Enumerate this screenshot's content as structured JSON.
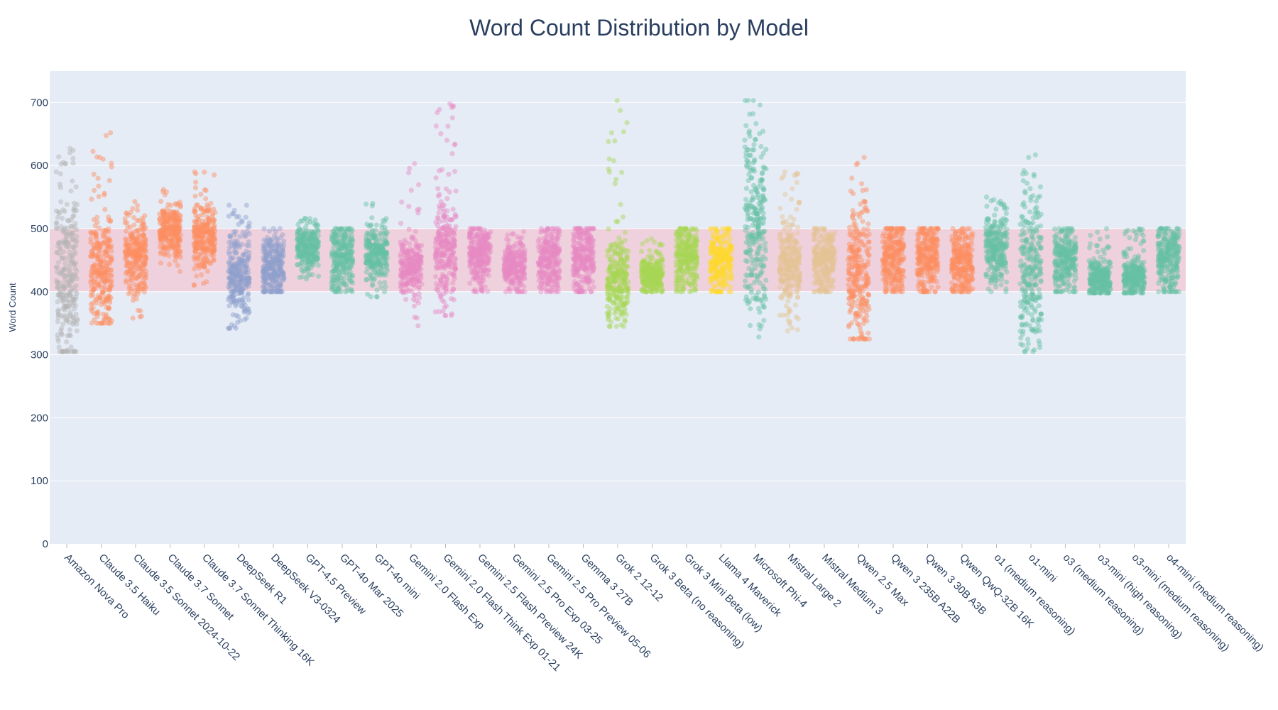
{
  "chart_data": {
    "type": "scatter",
    "title": "Word Count Distribution by Model",
    "xlabel": "",
    "ylabel": "Word Count",
    "ylim": [
      0,
      750
    ],
    "yticks": [
      0,
      100,
      200,
      300,
      400,
      500,
      600,
      700
    ],
    "grid": true,
    "highlight_band": {
      "from": 400,
      "to": 500,
      "color": "#f2c6d2"
    },
    "background_color": "#e5ecf6",
    "categories": [
      "Amazon Nova Pro",
      "Claude 3.5 Haiku",
      "Claude 3.5 Sonnet 2024-10-22",
      "Claude 3.7 Sonnet",
      "Claude 3.7 Sonnet Thinking 16K",
      "DeepSeek R1",
      "DeepSeek V3-0324",
      "GPT-4.5 Preview",
      "GPT-4o Mar 2025",
      "GPT-4o mini",
      "Gemini 2.0 Flash Exp",
      "Gemini 2.0 Flash Think Exp 01-21",
      "Gemini 2.5 Flash Preview 24K",
      "Gemini 2.5 Pro Exp 03-25",
      "Gemini 2.5 Pro Preview 05-06",
      "Gemma 3 27B",
      "Grok 2 12-12",
      "Grok 3 Beta (no reasoning)",
      "Grok 3 Mini Beta (low)",
      "Llama 4 Maverick",
      "Microsoft Phi-4",
      "Mistral Large 2",
      "Mistral Medium 3",
      "Qwen 2.5 Max",
      "Qwen 3 235B A22B",
      "Qwen 3 30B A3B",
      "Qwen QwQ-32B 16K",
      "o1 (medium reasoning)",
      "o1-mini",
      "o3 (medium reasoning)",
      "o3-mini (high reasoning)",
      "o3-mini (medium reasoning)",
      "o4-mini (medium reasoning)"
    ],
    "series": [
      {
        "color": "#b3b3b3",
        "min": 305,
        "max": 627,
        "median": 420,
        "q1": 370,
        "q3": 500
      },
      {
        "color": "#fc8d62",
        "min": 350,
        "max": 652,
        "median": 430,
        "q1": 405,
        "q3": 480
      },
      {
        "color": "#fc8d62",
        "min": 358,
        "max": 543,
        "median": 455,
        "q1": 430,
        "q3": 480
      },
      {
        "color": "#fc8d62",
        "min": 432,
        "max": 562,
        "median": 495,
        "q1": 478,
        "q3": 512
      },
      {
        "color": "#fc8d62",
        "min": 410,
        "max": 590,
        "median": 485,
        "q1": 460,
        "q3": 510
      },
      {
        "color": "#8da0cb",
        "min": 342,
        "max": 537,
        "median": 425,
        "q1": 400,
        "q3": 460
      },
      {
        "color": "#8da0cb",
        "min": 400,
        "max": 500,
        "median": 440,
        "q1": 420,
        "q3": 465
      },
      {
        "color": "#66c2a5",
        "min": 420,
        "max": 516,
        "median": 470,
        "q1": 455,
        "q3": 485
      },
      {
        "color": "#66c2a5",
        "min": 400,
        "max": 500,
        "median": 455,
        "q1": 430,
        "q3": 480
      },
      {
        "color": "#66c2a5",
        "min": 392,
        "max": 540,
        "median": 460,
        "q1": 440,
        "q3": 480
      },
      {
        "color": "#e78ac3",
        "min": 346,
        "max": 603,
        "median": 435,
        "q1": 415,
        "q3": 455
      },
      {
        "color": "#e78ac3",
        "min": 362,
        "max": 698,
        "median": 465,
        "q1": 435,
        "q3": 510
      },
      {
        "color": "#e78ac3",
        "min": 400,
        "max": 500,
        "median": 460,
        "q1": 440,
        "q3": 480
      },
      {
        "color": "#e78ac3",
        "min": 400,
        "max": 495,
        "median": 440,
        "q1": 425,
        "q3": 460
      },
      {
        "color": "#e78ac3",
        "min": 400,
        "max": 500,
        "median": 450,
        "q1": 430,
        "q3": 475
      },
      {
        "color": "#e78ac3",
        "min": 400,
        "max": 500,
        "median": 455,
        "q1": 430,
        "q3": 480
      },
      {
        "color": "#a6d854",
        "min": 345,
        "max": 703,
        "median": 420,
        "q1": 395,
        "q3": 455
      },
      {
        "color": "#a6d854",
        "min": 400,
        "max": 484,
        "median": 425,
        "q1": 415,
        "q3": 440
      },
      {
        "color": "#a6d854",
        "min": 400,
        "max": 500,
        "median": 455,
        "q1": 430,
        "q3": 480
      },
      {
        "color": "#ffd92f",
        "min": 400,
        "max": 500,
        "median": 450,
        "q1": 425,
        "q3": 475
      },
      {
        "color": "#66c2a5",
        "min": 328,
        "max": 703,
        "median": 500,
        "q1": 440,
        "q3": 570
      },
      {
        "color": "#e5c494",
        "min": 338,
        "max": 590,
        "median": 440,
        "q1": 415,
        "q3": 475
      },
      {
        "color": "#e5c494",
        "min": 400,
        "max": 500,
        "median": 450,
        "q1": 425,
        "q3": 475
      },
      {
        "color": "#fc8d62",
        "min": 325,
        "max": 613,
        "median": 430,
        "q1": 380,
        "q3": 485
      },
      {
        "color": "#fc8d62",
        "min": 400,
        "max": 500,
        "median": 455,
        "q1": 430,
        "q3": 480
      },
      {
        "color": "#fc8d62",
        "min": 400,
        "max": 500,
        "median": 455,
        "q1": 430,
        "q3": 480
      },
      {
        "color": "#fc8d62",
        "min": 400,
        "max": 500,
        "median": 450,
        "q1": 425,
        "q3": 475
      },
      {
        "color": "#66c2a5",
        "min": 400,
        "max": 550,
        "median": 470,
        "q1": 445,
        "q3": 492
      },
      {
        "color": "#66c2a5",
        "min": 305,
        "max": 617,
        "median": 430,
        "q1": 380,
        "q3": 490
      },
      {
        "color": "#66c2a5",
        "min": 400,
        "max": 500,
        "median": 450,
        "q1": 425,
        "q3": 475
      },
      {
        "color": "#66c2a5",
        "min": 398,
        "max": 500,
        "median": 420,
        "q1": 408,
        "q3": 435
      },
      {
        "color": "#66c2a5",
        "min": 398,
        "max": 500,
        "median": 420,
        "q1": 408,
        "q3": 435
      },
      {
        "color": "#66c2a5",
        "min": 400,
        "max": 500,
        "median": 455,
        "q1": 430,
        "q3": 480
      }
    ]
  }
}
